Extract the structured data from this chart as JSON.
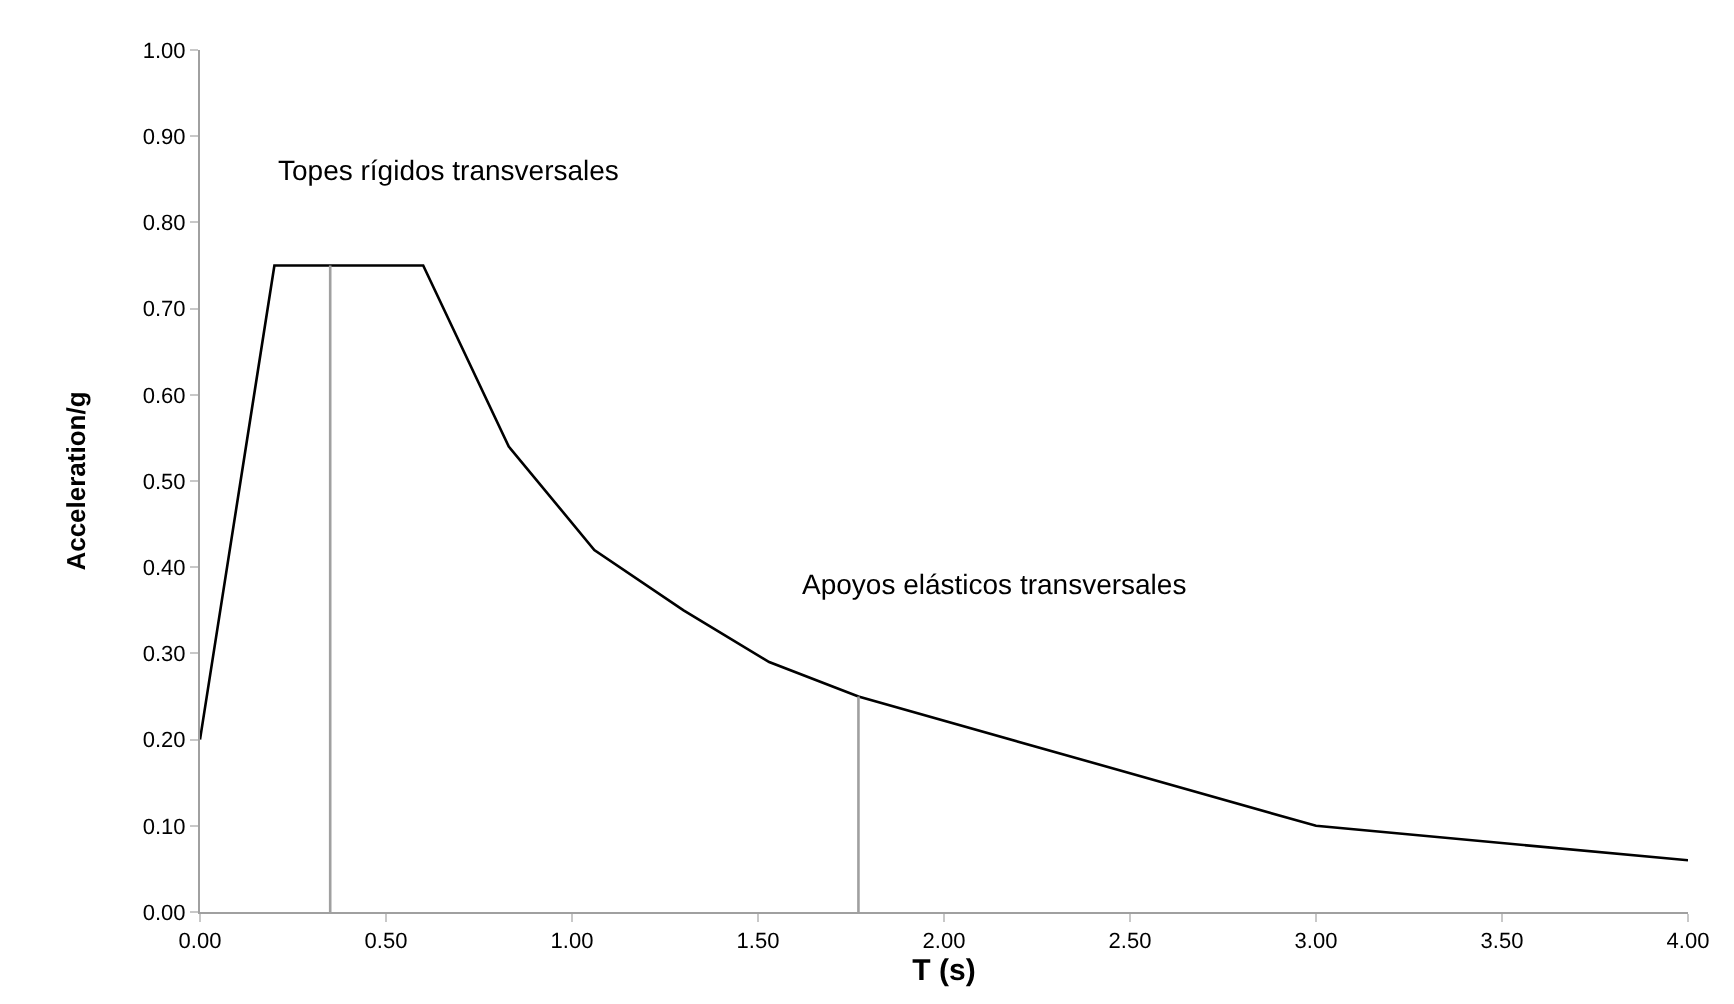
{
  "chart_data": {
    "type": "line",
    "xlabel": "T (s)",
    "ylabel": "Acceleration/g",
    "xlim": [
      0,
      4
    ],
    "ylim": [
      0,
      1
    ],
    "xticks": [
      {
        "value": 0,
        "label": "0.00"
      },
      {
        "value": 0.5,
        "label": "0.50"
      },
      {
        "value": 1,
        "label": "1.00"
      },
      {
        "value": 1.5,
        "label": "1.50"
      },
      {
        "value": 2,
        "label": "2.00"
      },
      {
        "value": 2.5,
        "label": "2.50"
      },
      {
        "value": 3,
        "label": "3.00"
      },
      {
        "value": 3.5,
        "label": "3.50"
      },
      {
        "value": 4,
        "label": "4.00"
      }
    ],
    "yticks": [
      {
        "value": 0,
        "label": "0.00"
      },
      {
        "value": 0.1,
        "label": "0.10"
      },
      {
        "value": 0.2,
        "label": "0.20"
      },
      {
        "value": 0.3,
        "label": "0.30"
      },
      {
        "value": 0.4,
        "label": "0.40"
      },
      {
        "value": 0.5,
        "label": "0.50"
      },
      {
        "value": 0.6,
        "label": "0.60"
      },
      {
        "value": 0.7,
        "label": "0.70"
      },
      {
        "value": 0.8,
        "label": "0.80"
      },
      {
        "value": 0.9,
        "label": "0.90"
      },
      {
        "value": 1,
        "label": "1.00"
      }
    ],
    "marker": "none",
    "line_style": "solid",
    "series": [
      {
        "color": "#000000",
        "x": [
          0,
          0.2,
          0.6,
          0.83,
          1.06,
          1.3,
          1.53,
          1.77,
          3.0,
          4.0
        ],
        "values": [
          0.2,
          0.75,
          0.75,
          0.54,
          0.42,
          0.35,
          0.29,
          0.25,
          0.1,
          0.06
        ]
      },
      {
        "color": "#a0a0a0",
        "x": [
          0.35,
          0.35
        ],
        "values": [
          0,
          0.75
        ]
      },
      {
        "color": "#a0a0a0",
        "x": [
          1.77,
          1.77
        ],
        "values": [
          0,
          0.25
        ]
      }
    ],
    "annotations": [
      "Topes rígidos transversales",
      "Apoyos elásticos transversales"
    ]
  }
}
